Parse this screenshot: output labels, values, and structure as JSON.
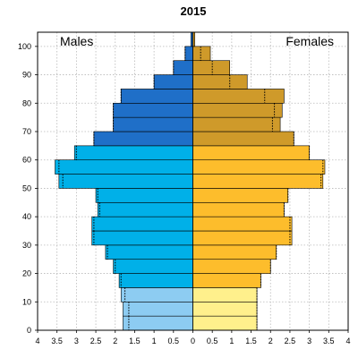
{
  "chart_data": {
    "type": "bar",
    "orientation": "horizontal-pyramid",
    "title": "2015",
    "categories": [
      "0",
      "5",
      "10",
      "15",
      "20",
      "25",
      "30",
      "35",
      "40",
      "45",
      "50",
      "55",
      "60",
      "65",
      "70",
      "75",
      "80",
      "85",
      "90",
      "95",
      "100"
    ],
    "series": [
      {
        "name": "Males",
        "values": [
          1.8,
          1.8,
          1.85,
          1.9,
          2.05,
          2.25,
          2.6,
          2.6,
          2.45,
          2.5,
          3.45,
          3.55,
          3.05,
          2.55,
          2.05,
          2.05,
          1.85,
          1.0,
          0.5,
          0.2,
          0.05
        ],
        "markers": [
          1.65,
          1.65,
          1.75,
          1.85,
          2.0,
          2.2,
          2.55,
          2.55,
          2.4,
          2.45,
          3.35,
          3.45,
          3.0,
          2.55,
          2.05,
          2.05,
          1.85,
          1.0,
          0.5,
          0.2,
          0.05
        ]
      },
      {
        "name": "Females",
        "values": [
          1.65,
          1.65,
          1.65,
          1.75,
          2.0,
          2.15,
          2.55,
          2.55,
          2.35,
          2.45,
          3.35,
          3.4,
          3.0,
          2.6,
          2.25,
          2.3,
          2.35,
          1.4,
          0.95,
          0.45,
          0.05
        ],
        "markers": [
          1.65,
          1.65,
          1.65,
          1.75,
          2.0,
          2.15,
          2.5,
          2.5,
          2.35,
          2.45,
          3.3,
          3.35,
          3.0,
          2.6,
          2.05,
          2.1,
          1.85,
          0.95,
          0.5,
          0.2,
          0.05
        ]
      }
    ],
    "x_ticks": [
      "4",
      "3.5",
      "3",
      "2.5",
      "2",
      "1.5",
      "1",
      "0.5",
      "0",
      "0.5",
      "1",
      "1.5",
      "2",
      "2.5",
      "3",
      "3.5",
      "4"
    ],
    "y_ticks": [
      "0",
      "10",
      "20",
      "30",
      "40",
      "50",
      "60",
      "70",
      "80",
      "90",
      "100"
    ],
    "xlim": [
      -4,
      4
    ],
    "ylim": [
      0,
      105
    ],
    "grid": true,
    "side_labels": {
      "left": "Males",
      "right": "Females"
    },
    "colors": {
      "males": [
        "#8dccf2",
        "#8dccf2",
        "#8dccf2",
        "#00b0e8",
        "#00b0e8",
        "#00b0e8",
        "#00b0e8",
        "#00b0e8",
        "#00b0e8",
        "#00b0e8",
        "#00b0e8",
        "#00b0e8",
        "#00b0e8",
        "#1f6fc8",
        "#1f6fc8",
        "#1f6fc8",
        "#1f6fc8",
        "#1f6fc8",
        "#1f6fc8",
        "#1f6fc8",
        "#1f6fc8"
      ],
      "females": [
        "#fff08c",
        "#fff08c",
        "#fff08c",
        "#fdbd2c",
        "#fdbd2c",
        "#fdbd2c",
        "#fdbd2c",
        "#fdbd2c",
        "#fdbd2c",
        "#fdbd2c",
        "#fdbd2c",
        "#fdbd2c",
        "#fdbd2c",
        "#cf9a2a",
        "#cf9a2a",
        "#cf9a2a",
        "#cf9a2a",
        "#cf9a2a",
        "#cf9a2a",
        "#cf9a2a",
        "#cf9a2a"
      ]
    }
  }
}
